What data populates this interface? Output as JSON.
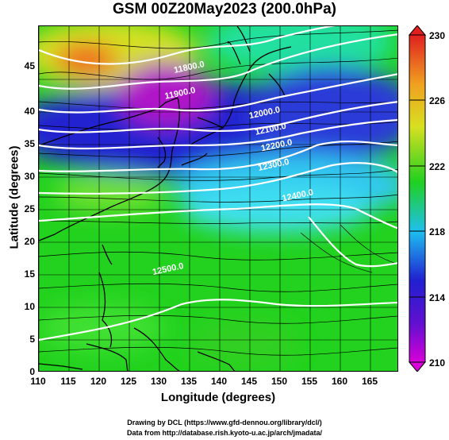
{
  "title": "GSM 00Z20May2023 (200.0hPa)",
  "xlabel": "Longitude (degrees)",
  "ylabel": "Latitude (degrees)",
  "x_ticks": [
    "110",
    "115",
    "120",
    "125",
    "130",
    "135",
    "140",
    "145",
    "150",
    "155",
    "160",
    "165"
  ],
  "y_ticks": [
    "0",
    "5",
    "10",
    "15",
    "20",
    "25",
    "30",
    "35",
    "40",
    "45"
  ],
  "colorbar": {
    "labels": [
      "230",
      "226",
      "222",
      "218",
      "214",
      "210"
    ],
    "range": [
      210,
      230
    ],
    "colors": [
      "#d800d8",
      "#2020d0",
      "#1ec0f0",
      "#20d020",
      "#d8e020",
      "#f0a020",
      "#e02020"
    ]
  },
  "contour_labels": [
    {
      "text": "11800.0",
      "lon": 135.0,
      "lat": 46.5
    },
    {
      "text": "11900.0",
      "lon": 133.5,
      "lat": 42.5
    },
    {
      "text": "12000.0",
      "lon": 147.5,
      "lat": 39.5
    },
    {
      "text": "12100.0",
      "lon": 148.5,
      "lat": 37.0
    },
    {
      "text": "12200.0",
      "lon": 149.5,
      "lat": 34.5
    },
    {
      "text": "12300.0",
      "lon": 149.0,
      "lat": 31.5
    },
    {
      "text": "12400.0",
      "lon": 153.0,
      "lat": 26.8
    },
    {
      "text": "12500.0",
      "lon": 131.5,
      "lat": 15.5
    }
  ],
  "credits": [
    "Drawing by DCL (https://www.gfd-dennou.org/library/dcl/)",
    "Data from http://database.rish.kyoto-u.ac.jp/arch/jmadata/"
  ]
}
